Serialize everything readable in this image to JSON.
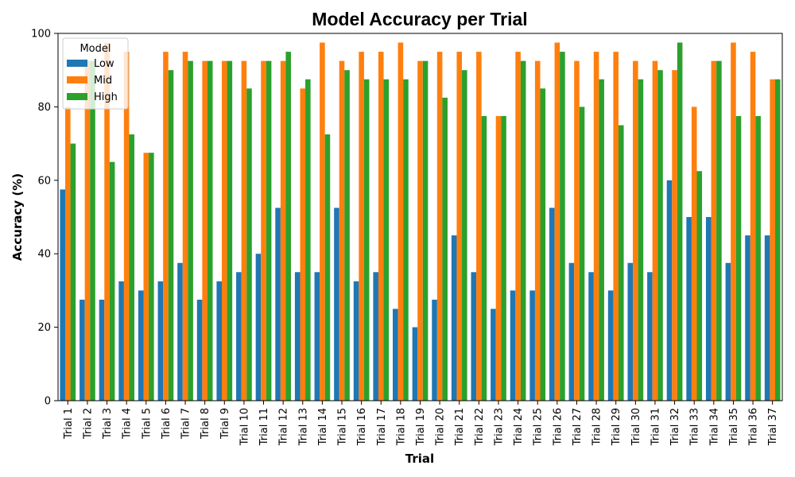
{
  "chart_data": {
    "type": "bar",
    "title": "Model Accuracy per Trial",
    "xlabel": "Trial",
    "ylabel": "Accuracy (%)",
    "ylim": [
      0,
      100
    ],
    "yticks": [
      0,
      20,
      40,
      60,
      80,
      100
    ],
    "grid": false,
    "legend": {
      "title": "Model",
      "placement": "top-left"
    },
    "categories": [
      "Trial 1",
      "Trial 2",
      "Trial 3",
      "Trial 4",
      "Trial 5",
      "Trial 6",
      "Trial 7",
      "Trial 8",
      "Trial 9",
      "Trial 10",
      "Trial 11",
      "Trial 12",
      "Trial 13",
      "Trial 14",
      "Trial 15",
      "Trial 16",
      "Trial 17",
      "Trial 18",
      "Trial 19",
      "Trial 20",
      "Trial 21",
      "Trial 22",
      "Trial 23",
      "Trial 24",
      "Trial 25",
      "Trial 26",
      "Trial 27",
      "Trial 28",
      "Trial 29",
      "Trial 30",
      "Trial 31",
      "Trial 32",
      "Trial 33",
      "Trial 34",
      "Trial 35",
      "Trial 36",
      "Trial 37"
    ],
    "series": [
      {
        "name": "Low",
        "color": "#1f77b4",
        "values": [
          57.5,
          27.5,
          27.5,
          32.5,
          30,
          32.5,
          37.5,
          27.5,
          32.5,
          35,
          40,
          52.5,
          35,
          35,
          52.5,
          32.5,
          35,
          25,
          20,
          27.5,
          45,
          35,
          25,
          30,
          30,
          52.5,
          37.5,
          35,
          30,
          37.5,
          35,
          60,
          50,
          50,
          37.5,
          45,
          45
        ]
      },
      {
        "name": "Mid",
        "color": "#ff7f0e",
        "values": [
          80,
          92.5,
          97.5,
          95,
          67.5,
          95,
          95,
          92.5,
          92.5,
          92.5,
          92.5,
          92.5,
          85,
          97.5,
          92.5,
          95,
          95,
          97.5,
          92.5,
          95,
          95,
          95,
          77.5,
          95,
          92.5,
          97.5,
          92.5,
          95,
          95,
          92.5,
          92.5,
          90,
          80,
          92.5,
          97.5,
          95,
          87.5
        ]
      },
      {
        "name": "High",
        "color": "#2ca02c",
        "values": [
          70,
          92.5,
          65,
          72.5,
          67.5,
          90,
          92.5,
          92.5,
          92.5,
          85,
          92.5,
          95,
          87.5,
          72.5,
          90,
          87.5,
          87.5,
          87.5,
          92.5,
          82.5,
          90,
          77.5,
          77.5,
          92.5,
          85,
          95,
          80,
          87.5,
          75,
          87.5,
          90,
          97.5,
          62.5,
          92.5,
          77.5,
          77.5,
          87.5
        ]
      }
    ]
  }
}
